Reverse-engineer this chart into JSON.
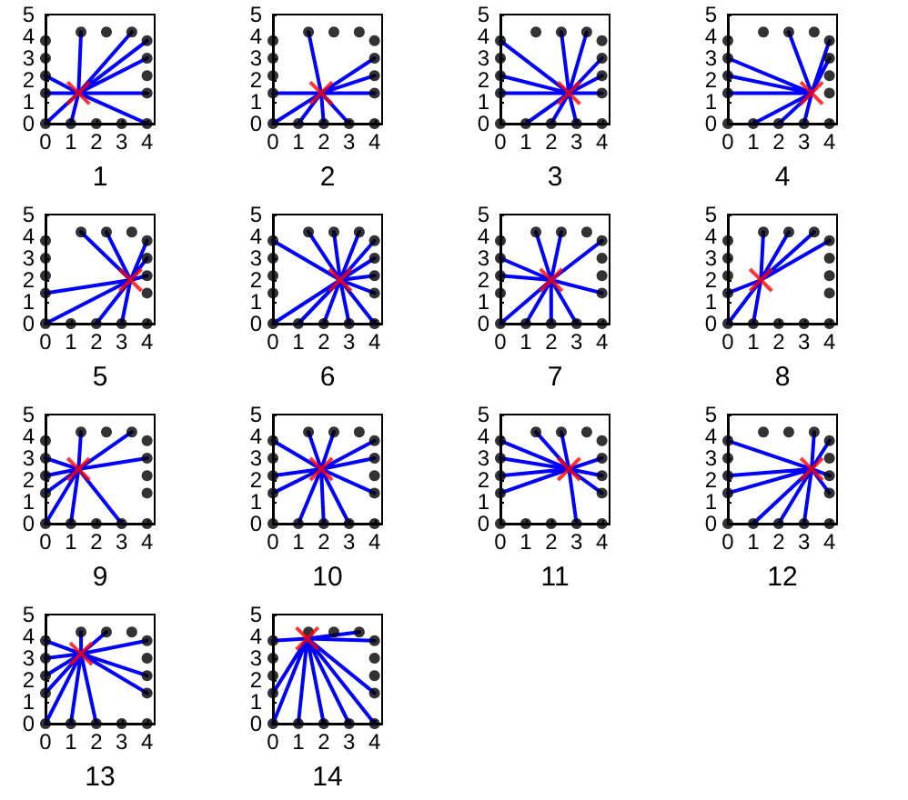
{
  "chart_data": [
    {
      "type": "scatter",
      "xlabel": "1",
      "xlim": [
        0,
        4.3
      ],
      "ylim": [
        0,
        5
      ],
      "xticks": [
        0,
        1,
        2,
        3,
        4
      ],
      "yticks": [
        0,
        1,
        2,
        3,
        4,
        5
      ],
      "series": [
        {
          "type": "line",
          "color": "#0000ff",
          "x": [
            1.3,
            1.4,
            1.3,
            3.4,
            1.3,
            4,
            1.3,
            4,
            1.3,
            4,
            1.3,
            4,
            1.3,
            0,
            1.3,
            0,
            1.3,
            0,
            1.3,
            1
          ],
          "values": [
            1.4,
            4.2,
            1.4,
            4.2,
            1.4,
            3.8,
            1.4,
            3,
            1.4,
            1.4,
            1.4,
            0,
            1.4,
            2.2,
            1.4,
            1.4,
            1.4,
            0,
            1.4,
            0
          ]
        },
        {
          "type": "scatter",
          "marker": "circle",
          "color": "#000000",
          "x": [
            0,
            1,
            2,
            3,
            4,
            0,
            0,
            0,
            0,
            1.4,
            2.4,
            3.4,
            4,
            4,
            4,
            4
          ],
          "values": [
            0,
            0,
            0,
            0,
            0,
            1.4,
            2.2,
            3,
            3.8,
            4.2,
            4.2,
            4.2,
            1.4,
            2.2,
            3,
            3.8
          ]
        },
        {
          "type": "scatter",
          "marker": "cross",
          "color": "#ff0000",
          "x": [
            1.3
          ],
          "values": [
            1.4
          ]
        }
      ]
    },
    {
      "type": "scatter",
      "xlabel": "2",
      "xlim": [
        0,
        4.3
      ],
      "ylim": [
        0,
        5
      ],
      "xticks": [
        0,
        1,
        2,
        3,
        4
      ],
      "yticks": [
        0,
        1,
        2,
        3,
        4,
        5
      ],
      "series": [
        {
          "type": "line",
          "color": "#0000ff",
          "x": [
            1.9,
            1.4,
            1.9,
            4,
            1.9,
            4,
            1.9,
            4,
            1.9,
            0,
            1.9,
            0,
            1.9,
            1,
            1.9,
            2,
            1.9,
            3
          ],
          "values": [
            1.4,
            4.2,
            1.4,
            3,
            1.4,
            2.2,
            1.4,
            1.4,
            1.4,
            1.4,
            1.4,
            0,
            1.4,
            0,
            1.4,
            0,
            1.4,
            0
          ]
        },
        {
          "type": "scatter",
          "marker": "circle",
          "color": "#000000",
          "x": [
            0,
            1,
            2,
            3,
            4,
            0,
            0,
            0,
            0,
            1.4,
            2.4,
            3.4,
            4,
            4,
            4,
            4
          ],
          "values": [
            0,
            0,
            0,
            0,
            0,
            1.4,
            2.2,
            3,
            3.8,
            4.2,
            4.2,
            4.2,
            1.4,
            2.2,
            3,
            3.8
          ]
        },
        {
          "type": "scatter",
          "marker": "cross",
          "color": "#ff0000",
          "x": [
            1.9
          ],
          "values": [
            1.4
          ]
        }
      ]
    },
    {
      "type": "scatter",
      "xlabel": "3",
      "xlim": [
        0,
        4.3
      ],
      "ylim": [
        0,
        5
      ],
      "xticks": [
        0,
        1,
        2,
        3,
        4
      ],
      "yticks": [
        0,
        1,
        2,
        3,
        4,
        5
      ],
      "series": [
        {
          "type": "line",
          "color": "#0000ff",
          "x": [
            2.7,
            0,
            2.7,
            0,
            2.7,
            0,
            2.7,
            1,
            2.7,
            2,
            2.7,
            3,
            2.7,
            2.4,
            2.7,
            3.4,
            2.7,
            4,
            2.7,
            4,
            2.7,
            4
          ],
          "values": [
            1.4,
            3.8,
            1.4,
            2.2,
            1.4,
            1.4,
            1.4,
            0,
            1.4,
            0,
            1.4,
            0,
            1.4,
            4.2,
            1.4,
            4.2,
            1.4,
            3,
            1.4,
            2.2,
            1.4,
            1.4
          ]
        },
        {
          "type": "scatter",
          "marker": "circle",
          "color": "#000000",
          "x": [
            0,
            1,
            2,
            3,
            4,
            0,
            0,
            0,
            0,
            1.4,
            2.4,
            3.4,
            4,
            4,
            4,
            4
          ],
          "values": [
            0,
            0,
            0,
            0,
            0,
            1.4,
            2.2,
            3,
            3.8,
            4.2,
            4.2,
            4.2,
            1.4,
            2.2,
            3,
            3.8
          ]
        },
        {
          "type": "scatter",
          "marker": "cross",
          "color": "#ff0000",
          "x": [
            2.7
          ],
          "values": [
            1.4
          ]
        }
      ]
    },
    {
      "type": "scatter",
      "xlabel": "4",
      "xlim": [
        0,
        4.3
      ],
      "ylim": [
        0,
        5
      ],
      "xticks": [
        0,
        1,
        2,
        3,
        4
      ],
      "yticks": [
        0,
        1,
        2,
        3,
        4,
        5
      ],
      "series": [
        {
          "type": "line",
          "color": "#0000ff",
          "x": [
            3.3,
            0,
            3.3,
            0,
            3.3,
            0,
            3.3,
            1,
            3.3,
            2,
            3.3,
            3,
            3.3,
            2.4,
            3.3,
            4,
            3.3,
            4
          ],
          "values": [
            1.4,
            3,
            1.4,
            2.2,
            1.4,
            1.4,
            1.4,
            0,
            1.4,
            0,
            1.4,
            0,
            1.4,
            4.2,
            1.4,
            3.8,
            1.4,
            3
          ]
        },
        {
          "type": "scatter",
          "marker": "circle",
          "color": "#000000",
          "x": [
            0,
            1,
            2,
            3,
            4,
            0,
            0,
            0,
            0,
            1.4,
            2.4,
            3.4,
            4,
            4,
            4,
            4
          ],
          "values": [
            0,
            0,
            0,
            0,
            0,
            1.4,
            2.2,
            3,
            3.8,
            4.2,
            4.2,
            4.2,
            1.4,
            2.2,
            3,
            3.8
          ]
        },
        {
          "type": "scatter",
          "marker": "cross",
          "color": "#ff0000",
          "x": [
            3.3
          ],
          "values": [
            1.4
          ]
        }
      ]
    },
    {
      "type": "scatter",
      "xlabel": "5",
      "xlim": [
        0,
        4.3
      ],
      "ylim": [
        0,
        5
      ],
      "xticks": [
        0,
        1,
        2,
        3,
        4
      ],
      "yticks": [
        0,
        1,
        2,
        3,
        4,
        5
      ],
      "series": [
        {
          "type": "line",
          "color": "#0000ff",
          "x": [
            3.35,
            0,
            3.35,
            0,
            3.35,
            1.4,
            3.35,
            2.4,
            3.35,
            4,
            3.35,
            4,
            3.35,
            4,
            3.35,
            2,
            3.35,
            3
          ],
          "values": [
            2,
            1.4,
            2,
            0,
            2,
            4.2,
            2,
            4.2,
            2,
            3.8,
            2,
            3,
            2,
            2.2,
            2,
            0,
            2,
            0
          ]
        },
        {
          "type": "scatter",
          "marker": "circle",
          "color": "#000000",
          "x": [
            0,
            1,
            2,
            3,
            4,
            0,
            0,
            0,
            0,
            1.4,
            2.4,
            3.4,
            4,
            4,
            4,
            4
          ],
          "values": [
            0,
            0,
            0,
            0,
            0,
            1.4,
            2.2,
            3,
            3.8,
            4.2,
            4.2,
            4.2,
            1.4,
            2.2,
            3,
            3.8
          ]
        },
        {
          "type": "scatter",
          "marker": "cross",
          "color": "#ff0000",
          "x": [
            3.35
          ],
          "values": [
            2
          ]
        }
      ]
    },
    {
      "type": "scatter",
      "xlabel": "6",
      "xlim": [
        0,
        4.3
      ],
      "ylim": [
        0,
        5
      ],
      "xticks": [
        0,
        1,
        2,
        3,
        4
      ],
      "yticks": [
        0,
        1,
        2,
        3,
        4,
        5
      ],
      "series": [
        {
          "type": "line",
          "color": "#0000ff",
          "x": [
            2.65,
            0,
            2.65,
            0,
            2.65,
            1,
            2.65,
            2,
            2.65,
            3,
            2.65,
            4,
            2.65,
            1.4,
            2.65,
            2.4,
            2.65,
            3.4,
            2.65,
            4,
            2.65,
            4,
            2.65,
            4,
            2.65,
            4
          ],
          "values": [
            2,
            3.8,
            2,
            0,
            2,
            0,
            2,
            0,
            2,
            0,
            2,
            0,
            2,
            4.2,
            2,
            4.2,
            2,
            4.2,
            2,
            3.8,
            2,
            3,
            2,
            2.2,
            2,
            1.4
          ]
        },
        {
          "type": "scatter",
          "marker": "circle",
          "color": "#000000",
          "x": [
            0,
            1,
            2,
            3,
            4,
            0,
            0,
            0,
            0,
            1.4,
            2.4,
            3.4,
            4,
            4,
            4,
            4
          ],
          "values": [
            0,
            0,
            0,
            0,
            0,
            1.4,
            2.2,
            3,
            3.8,
            4.2,
            4.2,
            4.2,
            1.4,
            2.2,
            3,
            3.8
          ]
        },
        {
          "type": "scatter",
          "marker": "cross",
          "color": "#ff0000",
          "x": [
            2.65
          ],
          "values": [
            2
          ]
        }
      ]
    },
    {
      "type": "scatter",
      "xlabel": "7",
      "xlim": [
        0,
        4.3
      ],
      "ylim": [
        0,
        5
      ],
      "xticks": [
        0,
        1,
        2,
        3,
        4
      ],
      "yticks": [
        0,
        1,
        2,
        3,
        4,
        5
      ],
      "series": [
        {
          "type": "line",
          "color": "#0000ff",
          "x": [
            2,
            0,
            2,
            0,
            2,
            0,
            2,
            1,
            2,
            2,
            2,
            3,
            2,
            1.4,
            2,
            2.4,
            2,
            4,
            2,
            4
          ],
          "values": [
            2,
            3,
            2,
            2.2,
            2,
            0,
            2,
            0,
            2,
            0,
            2,
            0,
            2,
            4.2,
            2,
            4.2,
            2,
            3.8,
            2,
            1.4
          ]
        },
        {
          "type": "scatter",
          "marker": "circle",
          "color": "#000000",
          "x": [
            0,
            1,
            2,
            3,
            4,
            0,
            0,
            0,
            0,
            1.4,
            2.4,
            3.4,
            4,
            4,
            4,
            4
          ],
          "values": [
            0,
            0,
            0,
            0,
            0,
            1.4,
            2.2,
            3,
            3.8,
            4.2,
            4.2,
            4.2,
            1.4,
            2.2,
            3,
            3.8
          ]
        },
        {
          "type": "scatter",
          "marker": "cross",
          "color": "#ff0000",
          "x": [
            2
          ],
          "values": [
            2
          ]
        }
      ]
    },
    {
      "type": "scatter",
      "xlabel": "8",
      "xlim": [
        0,
        4.3
      ],
      "ylim": [
        0,
        5
      ],
      "xticks": [
        0,
        1,
        2,
        3,
        4
      ],
      "yticks": [
        0,
        1,
        2,
        3,
        4,
        5
      ],
      "series": [
        {
          "type": "line",
          "color": "#0000ff",
          "x": [
            1.3,
            0,
            1.3,
            0,
            1.3,
            1,
            1.3,
            1.4,
            1.3,
            2.4,
            1.3,
            3.4,
            1.3,
            4
          ],
          "values": [
            2,
            1.4,
            2,
            0,
            2,
            0,
            2,
            4.2,
            2,
            4.2,
            2,
            4.2,
            2,
            3.8
          ]
        },
        {
          "type": "scatter",
          "marker": "circle",
          "color": "#000000",
          "x": [
            0,
            1,
            2,
            3,
            4,
            0,
            0,
            0,
            0,
            1.4,
            2.4,
            3.4,
            4,
            4,
            4,
            4
          ],
          "values": [
            0,
            0,
            0,
            0,
            0,
            1.4,
            2.2,
            3,
            3.8,
            4.2,
            4.2,
            4.2,
            1.4,
            2.2,
            3,
            3.8
          ]
        },
        {
          "type": "scatter",
          "marker": "cross",
          "color": "#ff0000",
          "x": [
            1.3
          ],
          "values": [
            2
          ]
        }
      ]
    },
    {
      "type": "scatter",
      "xlabel": "9",
      "xlim": [
        0,
        4.3
      ],
      "ylim": [
        0,
        5
      ],
      "xticks": [
        0,
        1,
        2,
        3,
        4
      ],
      "yticks": [
        0,
        1,
        2,
        3,
        4,
        5
      ],
      "series": [
        {
          "type": "line",
          "color": "#0000ff",
          "x": [
            1.3,
            0,
            1.3,
            0,
            1.3,
            0,
            1.3,
            0,
            1.3,
            1,
            1.3,
            3,
            1.3,
            1.4,
            1.3,
            3.4,
            1.3,
            4
          ],
          "values": [
            2.5,
            3,
            2.5,
            2.2,
            2.5,
            1.4,
            2.5,
            0,
            2.5,
            0,
            2.5,
            0,
            2.5,
            4.2,
            2.5,
            4.2,
            2.5,
            3
          ]
        },
        {
          "type": "scatter",
          "marker": "circle",
          "color": "#000000",
          "x": [
            0,
            1,
            2,
            3,
            4,
            0,
            0,
            0,
            0,
            1.4,
            2.4,
            3.4,
            4,
            4,
            4,
            4
          ],
          "values": [
            0,
            0,
            0,
            0,
            0,
            1.4,
            2.2,
            3,
            3.8,
            4.2,
            4.2,
            4.2,
            1.4,
            2.2,
            3,
            3.8
          ]
        },
        {
          "type": "scatter",
          "marker": "cross",
          "color": "#ff0000",
          "x": [
            1.3
          ],
          "values": [
            2.5
          ]
        }
      ]
    },
    {
      "type": "scatter",
      "xlabel": "10",
      "xlim": [
        0,
        4.3
      ],
      "ylim": [
        0,
        5
      ],
      "xticks": [
        0,
        1,
        2,
        3,
        4
      ],
      "yticks": [
        0,
        1,
        2,
        3,
        4,
        5
      ],
      "series": [
        {
          "type": "line",
          "color": "#0000ff",
          "x": [
            1.9,
            0,
            1.9,
            0,
            1.9,
            0,
            1.9,
            1,
            1.9,
            2,
            1.9,
            3,
            1.9,
            1.4,
            1.9,
            2.4,
            1.9,
            4,
            1.9,
            4,
            1.9,
            4
          ],
          "values": [
            2.5,
            3.8,
            2.5,
            2.2,
            2.5,
            1.4,
            2.5,
            0,
            2.5,
            0,
            2.5,
            0,
            2.5,
            4.2,
            2.5,
            4.2,
            2.5,
            3.8,
            2.5,
            3,
            2.5,
            1.4
          ]
        },
        {
          "type": "scatter",
          "marker": "circle",
          "color": "#000000",
          "x": [
            0,
            1,
            2,
            3,
            4,
            0,
            0,
            0,
            0,
            1.4,
            2.4,
            3.4,
            4,
            4,
            4,
            4
          ],
          "values": [
            0,
            0,
            0,
            0,
            0,
            1.4,
            2.2,
            3,
            3.8,
            4.2,
            4.2,
            4.2,
            1.4,
            2.2,
            3,
            3.8
          ]
        },
        {
          "type": "scatter",
          "marker": "cross",
          "color": "#ff0000",
          "x": [
            1.9
          ],
          "values": [
            2.5
          ]
        }
      ]
    },
    {
      "type": "scatter",
      "xlabel": "11",
      "xlim": [
        0,
        4.3
      ],
      "ylim": [
        0,
        5
      ],
      "xticks": [
        0,
        1,
        2,
        3,
        4
      ],
      "yticks": [
        0,
        1,
        2,
        3,
        4,
        5
      ],
      "series": [
        {
          "type": "line",
          "color": "#0000ff",
          "x": [
            2.7,
            0,
            2.7,
            0,
            2.7,
            0,
            2.7,
            0,
            2.7,
            1.4,
            2.7,
            2.4,
            2.7,
            3,
            2.7,
            4,
            2.7,
            4,
            2.7,
            4
          ],
          "values": [
            2.5,
            3.8,
            2.5,
            3,
            2.5,
            2.2,
            2.5,
            1.4,
            2.5,
            4.2,
            2.5,
            4.2,
            2.5,
            0,
            2.5,
            3,
            2.5,
            2.2,
            2.5,
            1.4
          ]
        },
        {
          "type": "scatter",
          "marker": "circle",
          "color": "#000000",
          "x": [
            0,
            1,
            2,
            3,
            4,
            0,
            0,
            0,
            0,
            1.4,
            2.4,
            3.4,
            4,
            4,
            4,
            4
          ],
          "values": [
            0,
            0,
            0,
            0,
            0,
            1.4,
            2.2,
            3,
            3.8,
            4.2,
            4.2,
            4.2,
            1.4,
            2.2,
            3,
            3.8
          ]
        },
        {
          "type": "scatter",
          "marker": "cross",
          "color": "#ff0000",
          "x": [
            2.7
          ],
          "values": [
            2.5
          ]
        }
      ]
    },
    {
      "type": "scatter",
      "xlabel": "12",
      "xlim": [
        0,
        4.3
      ],
      "ylim": [
        0,
        5
      ],
      "xticks": [
        0,
        1,
        2,
        3,
        4
      ],
      "yticks": [
        0,
        1,
        2,
        3,
        4,
        5
      ],
      "series": [
        {
          "type": "line",
          "color": "#0000ff",
          "x": [
            3.3,
            0,
            3.3,
            0,
            3.3,
            0,
            3.3,
            1,
            3.3,
            2,
            3.3,
            3,
            3.3,
            3.4,
            3.3,
            4,
            3.3,
            4,
            3.3,
            4
          ],
          "values": [
            2.5,
            3.8,
            2.5,
            2.2,
            2.5,
            1.4,
            2.5,
            0,
            2.5,
            0,
            2.5,
            0,
            2.5,
            4.2,
            2.5,
            3.8,
            2.5,
            2.2,
            2.5,
            1.4
          ]
        },
        {
          "type": "scatter",
          "marker": "circle",
          "color": "#000000",
          "x": [
            0,
            1,
            2,
            3,
            4,
            0,
            0,
            0,
            0,
            1.4,
            2.4,
            3.4,
            4,
            4,
            4,
            4
          ],
          "values": [
            0,
            0,
            0,
            0,
            0,
            1.4,
            2.2,
            3,
            3.8,
            4.2,
            4.2,
            4.2,
            1.4,
            2.2,
            3,
            3.8
          ]
        },
        {
          "type": "scatter",
          "marker": "cross",
          "color": "#ff0000",
          "x": [
            3.3
          ],
          "values": [
            2.5
          ]
        }
      ]
    },
    {
      "type": "scatter",
      "xlabel": "13",
      "xlim": [
        0,
        4.3
      ],
      "ylim": [
        0,
        5
      ],
      "xticks": [
        0,
        1,
        2,
        3,
        4
      ],
      "yticks": [
        0,
        1,
        2,
        3,
        4,
        5
      ],
      "series": [
        {
          "type": "line",
          "color": "#0000ff",
          "x": [
            1.4,
            0,
            1.4,
            0,
            1.4,
            0,
            1.4,
            0,
            1.4,
            0,
            1.4,
            1,
            1.4,
            2,
            1.4,
            1.4,
            1.4,
            2.4,
            1.4,
            4,
            1.4,
            4,
            1.4,
            4
          ],
          "values": [
            3.2,
            3.8,
            3.2,
            3,
            3.2,
            2.2,
            3.2,
            1.4,
            3.2,
            0,
            3.2,
            0,
            3.2,
            0,
            3.2,
            4.2,
            3.2,
            4.2,
            3.2,
            3.8,
            3.2,
            2.2,
            3.2,
            1.4
          ]
        },
        {
          "type": "scatter",
          "marker": "circle",
          "color": "#000000",
          "x": [
            0,
            1,
            2,
            3,
            4,
            0,
            0,
            0,
            0,
            1.4,
            2.4,
            3.4,
            4,
            4,
            4,
            4
          ],
          "values": [
            0,
            0,
            0,
            0,
            0,
            1.4,
            2.2,
            3,
            3.8,
            4.2,
            4.2,
            4.2,
            1.4,
            2.2,
            3,
            3.8
          ]
        },
        {
          "type": "scatter",
          "marker": "cross",
          "color": "#ff0000",
          "x": [
            1.4
          ],
          "values": [
            3.2
          ]
        }
      ]
    },
    {
      "type": "scatter",
      "xlabel": "14",
      "xlim": [
        0,
        4.3
      ],
      "ylim": [
        0,
        5
      ],
      "xticks": [
        0,
        1,
        2,
        3,
        4
      ],
      "yticks": [
        0,
        1,
        2,
        3,
        4,
        5
      ],
      "series": [
        {
          "type": "line",
          "color": "#0000ff",
          "x": [
            1.35,
            0,
            1.35,
            0,
            1.35,
            0,
            1.35,
            1,
            1.35,
            2,
            1.35,
            3,
            1.35,
            4,
            1.35,
            4,
            1.35,
            3.4,
            1.35,
            4
          ],
          "values": [
            3.9,
            3.8,
            3.9,
            1.4,
            3.9,
            0,
            3.9,
            0,
            3.9,
            0,
            3.9,
            0,
            3.9,
            0,
            3.9,
            1.4,
            3.9,
            4.2,
            3.9,
            3.8
          ]
        },
        {
          "type": "scatter",
          "marker": "circle",
          "color": "#000000",
          "x": [
            0,
            1,
            2,
            3,
            4,
            0,
            0,
            0,
            0,
            1.4,
            2.4,
            3.4,
            4,
            4,
            4,
            4
          ],
          "values": [
            0,
            0,
            0,
            0,
            0,
            1.4,
            2.2,
            3,
            3.8,
            4.2,
            4.2,
            4.2,
            1.4,
            2.2,
            3,
            3.8
          ]
        },
        {
          "type": "scatter",
          "marker": "cross",
          "color": "#ff0000",
          "x": [
            1.35
          ],
          "values": [
            3.9
          ]
        }
      ]
    }
  ]
}
